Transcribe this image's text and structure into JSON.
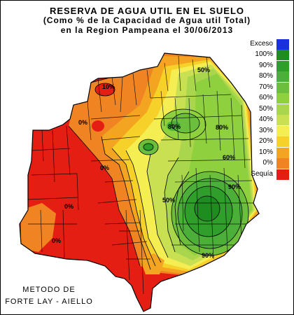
{
  "title": {
    "line1": "RESERVA DE AGUA UTIL EN EL SUELO",
    "line2": "(Como %  de la Capacidad de  Agua util Total)",
    "line3": "en la Region Pampeana el 30/06/2013"
  },
  "legend": {
    "title": "Exceso",
    "items": [
      {
        "label": "100%",
        "color": "#1e8c1e"
      },
      {
        "label": "90%",
        "color": "#2f9e2a"
      },
      {
        "label": "80%",
        "color": "#4caf3a"
      },
      {
        "label": "70%",
        "color": "#6cbf3c"
      },
      {
        "label": "60%",
        "color": "#8fd03e"
      },
      {
        "label": "50%",
        "color": "#a9d64c"
      },
      {
        "label": "40%",
        "color": "#c8e052"
      },
      {
        "label": "30%",
        "color": "#f4ee52"
      },
      {
        "label": "20%",
        "color": "#f5d12a"
      },
      {
        "label": "10%",
        "color": "#f3a521"
      },
      {
        "label": "0%",
        "color": "#f08422"
      },
      {
        "label": "Sequía",
        "color": "#e41e13"
      }
    ],
    "exceso_color": "#1a2fe0"
  },
  "contour_labels": [
    "10%",
    "0%",
    "0%",
    "0%",
    "50%",
    "80%",
    "80%",
    "60%",
    "50%",
    "0%",
    "90%",
    "90%"
  ],
  "method": {
    "line1": "METODO DE",
    "line2": "FORTE LAY - AIELLO"
  }
}
